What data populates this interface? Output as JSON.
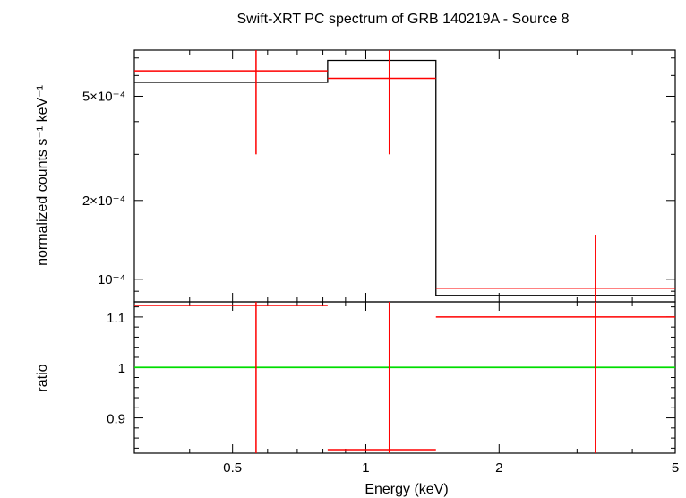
{
  "chart_data": [
    {
      "type": "line",
      "panel": "spectrum",
      "title": "Swift-XRT PC spectrum of GRB 140219A - Source 8",
      "xlabel": "Energy (keV)",
      "ylabel": "normalized counts s⁻¹ keV⁻¹",
      "xscale": "log",
      "yscale": "log",
      "xlim": [
        0.3,
        5.0
      ],
      "ylim": [
        8.2e-05,
        0.00075
      ],
      "ytick_labels": [
        {
          "value": 0.0001,
          "label": "10⁻⁴"
        },
        {
          "value": 0.0002,
          "label": "2×10⁻⁴"
        },
        {
          "value": 0.0005,
          "label": "5×10⁻⁴"
        }
      ],
      "series": [
        {
          "kind": "model-step",
          "color": "#000000",
          "steps": [
            {
              "x0": 0.3,
              "x1": 0.82,
              "y": 0.000565
            },
            {
              "x0": 0.82,
              "x1": 1.44,
              "y": 0.000685
            },
            {
              "x0": 1.44,
              "x1": 5.0,
              "y": 8.68e-05
            }
          ]
        },
        {
          "kind": "data-crosses",
          "color": "#ff0000",
          "points": [
            {
              "x": 0.565,
              "xlo": 0.3,
              "xhi": 0.82,
              "y": 0.000625,
              "ylo": 0.0003,
              "yhi": 0.00075
            },
            {
              "x": 1.13,
              "xlo": 0.82,
              "xhi": 1.44,
              "y": 0.000585,
              "ylo": 0.0003,
              "yhi": 0.00075
            },
            {
              "x": 3.3,
              "xlo": 1.44,
              "xhi": 5.0,
              "y": 9.25e-05,
              "ylo": 8.2e-05,
              "yhi": 0.000148
            }
          ]
        }
      ]
    },
    {
      "type": "line",
      "panel": "ratio",
      "xlabel": "Energy (keV)",
      "ylabel": "ratio",
      "xscale": "log",
      "xlim": [
        0.3,
        5.0
      ],
      "ylim": [
        0.83,
        1.13
      ],
      "xtick_labels": [
        {
          "value": 0.5,
          "label": "0.5"
        },
        {
          "value": 1,
          "label": "1"
        },
        {
          "value": 2,
          "label": "2"
        },
        {
          "value": 5,
          "label": "5"
        }
      ],
      "ytick_labels": [
        {
          "value": 0.9,
          "label": "0.9"
        },
        {
          "value": 1.0,
          "label": "1"
        },
        {
          "value": 1.1,
          "label": "1.1"
        }
      ],
      "reference_line": {
        "y": 1.0,
        "color": "#00dd00"
      },
      "series": [
        {
          "kind": "data-crosses",
          "color": "#ff0000",
          "points": [
            {
              "x": 0.565,
              "xlo": 0.3,
              "xhi": 0.82,
              "y": 1.123,
              "ylo": 0.83,
              "yhi": 1.13
            },
            {
              "x": 1.13,
              "xlo": 0.82,
              "xhi": 1.44,
              "y": 0.837,
              "ylo": 0.83,
              "yhi": 1.13
            },
            {
              "x": 3.3,
              "xlo": 1.44,
              "xhi": 5.0,
              "y": 1.1,
              "ylo": 0.83,
              "yhi": 1.13
            }
          ]
        }
      ]
    }
  ]
}
